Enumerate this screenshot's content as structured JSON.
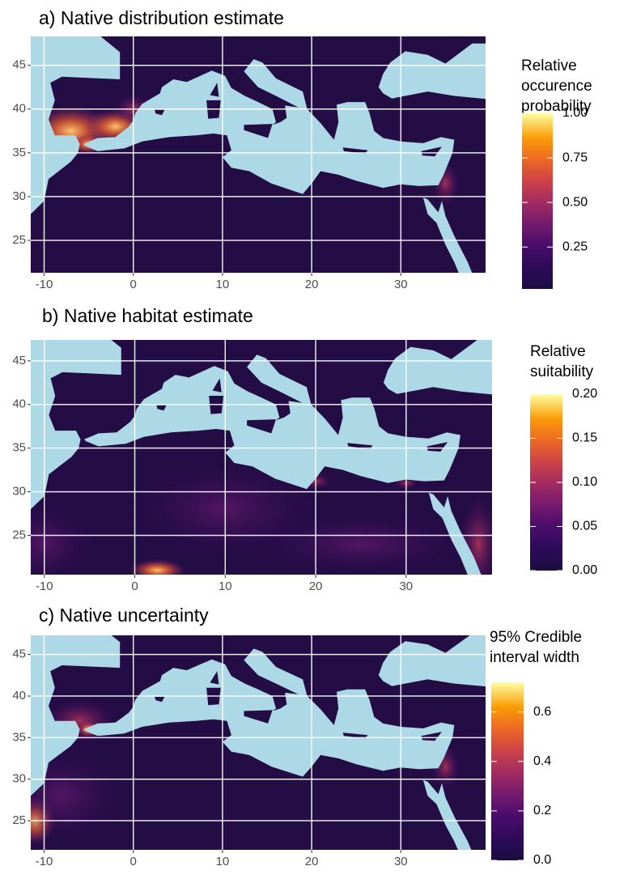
{
  "panels": [
    {
      "title": "a) Native distribution estimate",
      "legend_title": [
        "Relative",
        "occurence",
        "probability"
      ],
      "xlim": [
        -11.5,
        39.5
      ],
      "ylim": [
        21.3,
        48.3
      ],
      "xticks": [
        -10,
        0,
        10,
        20,
        30
      ],
      "yticks": [
        25,
        30,
        35,
        40,
        45
      ],
      "colorbar": {
        "lim": [
          0.015,
          1.0
        ],
        "ticks": [
          {
            "value": 0.25,
            "label": "0.25"
          },
          {
            "value": 0.5,
            "label": "0.50"
          },
          {
            "value": 0.75,
            "label": "0.75"
          },
          {
            "value": 1,
            "label": "1.00"
          }
        ]
      }
    },
    {
      "title": "b) Native habitat estimate",
      "legend_title": [
        "Relative",
        "suitability"
      ],
      "xlim": [
        -11.5,
        39.5
      ],
      "ylim": [
        20.5,
        47.4
      ],
      "xticks": [
        -10,
        0,
        10,
        20,
        30
      ],
      "yticks": [
        25,
        30,
        35,
        40,
        45
      ],
      "colorbar": {
        "lim": [
          0,
          0.2
        ],
        "ticks": [
          {
            "value": 0,
            "label": "0.00"
          },
          {
            "value": 0.05,
            "label": "0.05"
          },
          {
            "value": 0.1,
            "label": "0.10"
          },
          {
            "value": 0.15,
            "label": "0.15"
          },
          {
            "value": 0.2,
            "label": "0.20"
          }
        ]
      }
    },
    {
      "title": "c) Native uncertainty",
      "legend_title": [
        "95% Credible",
        "interval width"
      ],
      "xlim": [
        -11.5,
        39.5
      ],
      "ylim": [
        21.5,
        47.3
      ],
      "xticks": [
        -10,
        0,
        10,
        20,
        30
      ],
      "yticks": [
        25,
        30,
        35,
        40,
        45
      ],
      "colorbar": {
        "lim": [
          0,
          0.72
        ],
        "ticks": [
          {
            "value": 0,
            "label": "0.0"
          },
          {
            "value": 0.2,
            "label": "0.2"
          },
          {
            "value": 0.4,
            "label": "0.4"
          },
          {
            "value": 0.6,
            "label": "0.6"
          }
        ]
      }
    }
  ]
}
